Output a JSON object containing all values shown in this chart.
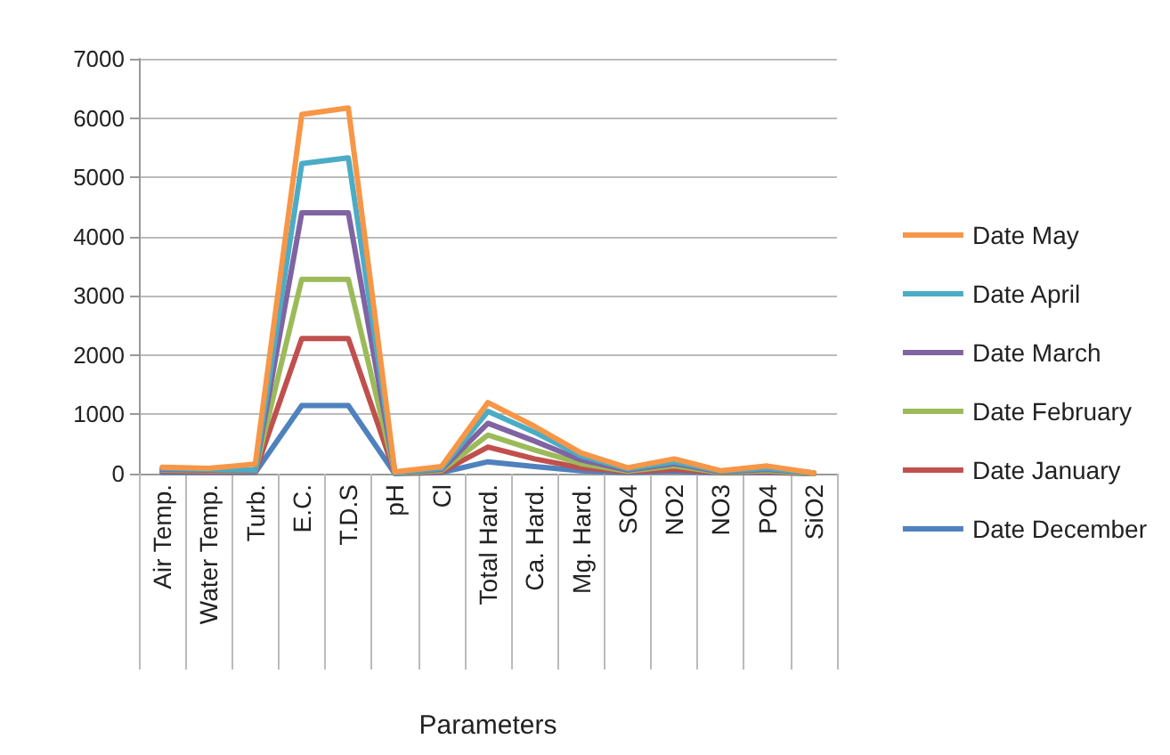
{
  "chart_data": {
    "type": "line",
    "xlabel": "Parameters",
    "categories": [
      "Air Temp.",
      "Water Temp.",
      "Turb.",
      "E.C.",
      "T.D.S",
      "pH",
      "Cl",
      "Total Hard.",
      "Ca. Hard.",
      "Mg. Hard.",
      "SO4",
      "NO2",
      "NO3",
      "PO4",
      "SiO2"
    ],
    "series": [
      {
        "name": "Date May",
        "color": "#f79646",
        "values": [
          110,
          90,
          160,
          6060,
          6170,
          30,
          120,
          1200,
          800,
          350,
          100,
          250,
          50,
          130,
          10
        ]
      },
      {
        "name": "Date April",
        "color": "#4bacc6",
        "values": [
          90,
          70,
          60,
          5230,
          5330,
          20,
          90,
          1050,
          700,
          300,
          80,
          200,
          40,
          90,
          10
        ]
      },
      {
        "name": "Date March",
        "color": "#8064a2",
        "values": [
          70,
          60,
          50,
          4400,
          4400,
          20,
          70,
          850,
          550,
          230,
          60,
          170,
          30,
          70,
          10
        ]
      },
      {
        "name": "Date February",
        "color": "#9bbb59",
        "values": [
          60,
          50,
          40,
          3280,
          3280,
          10,
          50,
          650,
          400,
          170,
          40,
          130,
          20,
          50,
          0
        ]
      },
      {
        "name": "Date January",
        "color": "#c0504d",
        "values": [
          40,
          30,
          30,
          2280,
          2280,
          10,
          30,
          450,
          250,
          100,
          30,
          70,
          20,
          30,
          0
        ]
      },
      {
        "name": "Date December",
        "color": "#4f81bd",
        "values": [
          20,
          20,
          20,
          1150,
          1150,
          0,
          20,
          200,
          120,
          50,
          20,
          40,
          10,
          20,
          0
        ]
      }
    ],
    "ylim": [
      0,
      7000
    ],
    "yticks": [
      0,
      1000,
      2000,
      3000,
      4000,
      5000,
      6000,
      7000
    ],
    "grid": "y",
    "legend": "right",
    "marker": "none",
    "line_style": "solid"
  }
}
